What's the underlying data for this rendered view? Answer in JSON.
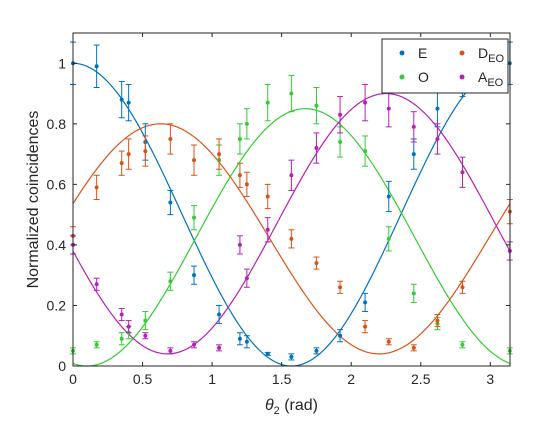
{
  "chart_data": {
    "type": "scatter",
    "xlabel": "θ2 (rad)",
    "xlabel_base": "θ",
    "xlabel_sub": "2",
    "xlabel_unit": " (rad)",
    "ylabel": "Normalized coincidences",
    "xlim": [
      0,
      3.1416
    ],
    "ylim": [
      0,
      1.1
    ],
    "xticks": [
      "0",
      "0.5",
      "1",
      "1.5",
      "2",
      "2.5",
      "3"
    ],
    "xtick_values": [
      0,
      0.5,
      1,
      1.5,
      2,
      2.5,
      3
    ],
    "yticks": [
      "0",
      "0.2",
      "0.4",
      "0.6",
      "0.8",
      "1"
    ],
    "ytick_values": [
      0,
      0.2,
      0.4,
      0.6,
      0.8,
      1
    ],
    "grid": false,
    "legend_position": "top-right",
    "series": [
      {
        "name": "E",
        "label_base": "E",
        "label_sub": "",
        "color": "#0072BD",
        "fit": {
          "offset": 0.5,
          "amplitude": 0.5,
          "phase": 0
        },
        "points": [
          {
            "x": 0.0,
            "y": 1.0,
            "err": 0.07
          },
          {
            "x": 0.17,
            "y": 0.99,
            "err": 0.07
          },
          {
            "x": 0.35,
            "y": 0.88,
            "err": 0.06
          },
          {
            "x": 0.4,
            "y": 0.87,
            "err": 0.06
          },
          {
            "x": 0.52,
            "y": 0.74,
            "err": 0.06
          },
          {
            "x": 0.7,
            "y": 0.54,
            "err": 0.04
          },
          {
            "x": 0.87,
            "y": 0.3,
            "err": 0.03
          },
          {
            "x": 1.05,
            "y": 0.17,
            "err": 0.03
          },
          {
            "x": 1.2,
            "y": 0.09,
            "err": 0.02
          },
          {
            "x": 1.25,
            "y": 0.08,
            "err": 0.02
          },
          {
            "x": 1.4,
            "y": 0.04,
            "err": 0.005
          },
          {
            "x": 1.57,
            "y": 0.03,
            "err": 0.01
          },
          {
            "x": 1.75,
            "y": 0.05,
            "err": 0.01
          },
          {
            "x": 1.92,
            "y": 0.1,
            "err": 0.02
          },
          {
            "x": 2.1,
            "y": 0.21,
            "err": 0.03
          },
          {
            "x": 2.27,
            "y": 0.56,
            "err": 0.05
          },
          {
            "x": 2.45,
            "y": 0.7,
            "err": 0.05
          },
          {
            "x": 2.62,
            "y": 0.85,
            "err": 0.06
          },
          {
            "x": 2.8,
            "y": 0.95,
            "err": 0.06
          },
          {
            "x": 3.14,
            "y": 1.0,
            "err": 0.07
          }
        ]
      },
      {
        "name": "O",
        "label_base": "O",
        "label_sub": "",
        "color": "#33CC33",
        "fit": {
          "offset": 0.425,
          "amplitude": -0.425,
          "phase": 0.1
        },
        "points": [
          {
            "x": 0.0,
            "y": 0.05,
            "err": 0.01
          },
          {
            "x": 0.17,
            "y": 0.07,
            "err": 0.01
          },
          {
            "x": 0.35,
            "y": 0.09,
            "err": 0.02
          },
          {
            "x": 0.4,
            "y": 0.11,
            "err": 0.02
          },
          {
            "x": 0.52,
            "y": 0.15,
            "err": 0.03
          },
          {
            "x": 0.7,
            "y": 0.28,
            "err": 0.03
          },
          {
            "x": 0.87,
            "y": 0.49,
            "err": 0.04
          },
          {
            "x": 1.05,
            "y": 0.68,
            "err": 0.05
          },
          {
            "x": 1.2,
            "y": 0.75,
            "err": 0.05
          },
          {
            "x": 1.25,
            "y": 0.8,
            "err": 0.05
          },
          {
            "x": 1.4,
            "y": 0.87,
            "err": 0.06
          },
          {
            "x": 1.57,
            "y": 0.9,
            "err": 0.06
          },
          {
            "x": 1.75,
            "y": 0.86,
            "err": 0.06
          },
          {
            "x": 1.92,
            "y": 0.74,
            "err": 0.05
          },
          {
            "x": 2.1,
            "y": 0.71,
            "err": 0.05
          },
          {
            "x": 2.27,
            "y": 0.42,
            "err": 0.04
          },
          {
            "x": 2.45,
            "y": 0.24,
            "err": 0.03
          },
          {
            "x": 2.62,
            "y": 0.14,
            "err": 0.02
          },
          {
            "x": 2.8,
            "y": 0.07,
            "err": 0.01
          },
          {
            "x": 3.14,
            "y": 0.05,
            "err": 0.01
          }
        ]
      },
      {
        "name": "D_EO",
        "label_base": "D",
        "label_sub": "EO",
        "color": "#D95319",
        "fit": {
          "offset": 0.42,
          "amplitude": 0.38,
          "phase": 0.63
        },
        "points": [
          {
            "x": 0.0,
            "y": 0.43,
            "err": 0.03
          },
          {
            "x": 0.17,
            "y": 0.59,
            "err": 0.04
          },
          {
            "x": 0.35,
            "y": 0.67,
            "err": 0.04
          },
          {
            "x": 0.4,
            "y": 0.7,
            "err": 0.05
          },
          {
            "x": 0.52,
            "y": 0.71,
            "err": 0.05
          },
          {
            "x": 0.7,
            "y": 0.75,
            "err": 0.05
          },
          {
            "x": 0.87,
            "y": 0.68,
            "err": 0.05
          },
          {
            "x": 1.05,
            "y": 0.7,
            "err": 0.05
          },
          {
            "x": 1.2,
            "y": 0.63,
            "err": 0.04
          },
          {
            "x": 1.25,
            "y": 0.6,
            "err": 0.04
          },
          {
            "x": 1.4,
            "y": 0.56,
            "err": 0.04
          },
          {
            "x": 1.57,
            "y": 0.42,
            "err": 0.03
          },
          {
            "x": 1.75,
            "y": 0.34,
            "err": 0.02
          },
          {
            "x": 1.92,
            "y": 0.26,
            "err": 0.02
          },
          {
            "x": 2.1,
            "y": 0.13,
            "err": 0.02
          },
          {
            "x": 2.27,
            "y": 0.08,
            "err": 0.01
          },
          {
            "x": 2.45,
            "y": 0.06,
            "err": 0.01
          },
          {
            "x": 2.62,
            "y": 0.15,
            "err": 0.02
          },
          {
            "x": 2.8,
            "y": 0.26,
            "err": 0.02
          },
          {
            "x": 3.14,
            "y": 0.51,
            "err": 0.04
          }
        ]
      },
      {
        "name": "A_EO",
        "label_base": "A",
        "label_sub": "EO",
        "color": "#B620B6",
        "fit": {
          "offset": 0.47,
          "amplitude": 0.43,
          "phase": 2.25
        },
        "points": [
          {
            "x": 0.0,
            "y": 0.4,
            "err": 0.03
          },
          {
            "x": 0.17,
            "y": 0.27,
            "err": 0.02
          },
          {
            "x": 0.35,
            "y": 0.17,
            "err": 0.02
          },
          {
            "x": 0.4,
            "y": 0.13,
            "err": 0.02
          },
          {
            "x": 0.52,
            "y": 0.1,
            "err": 0.01
          },
          {
            "x": 0.7,
            "y": 0.05,
            "err": 0.01
          },
          {
            "x": 0.87,
            "y": 0.07,
            "err": 0.01
          },
          {
            "x": 1.05,
            "y": 0.06,
            "err": 0.01
          },
          {
            "x": 1.2,
            "y": 0.4,
            "err": 0.03
          },
          {
            "x": 1.25,
            "y": 0.29,
            "err": 0.03
          },
          {
            "x": 1.4,
            "y": 0.45,
            "err": 0.04
          },
          {
            "x": 1.57,
            "y": 0.63,
            "err": 0.05
          },
          {
            "x": 1.75,
            "y": 0.72,
            "err": 0.05
          },
          {
            "x": 1.92,
            "y": 0.83,
            "err": 0.06
          },
          {
            "x": 2.1,
            "y": 0.87,
            "err": 0.06
          },
          {
            "x": 2.27,
            "y": 0.85,
            "err": 0.06
          },
          {
            "x": 2.45,
            "y": 0.79,
            "err": 0.05
          },
          {
            "x": 2.62,
            "y": 0.75,
            "err": 0.05
          },
          {
            "x": 2.8,
            "y": 0.64,
            "err": 0.05
          },
          {
            "x": 3.14,
            "y": 0.38,
            "err": 0.03
          }
        ]
      }
    ]
  }
}
